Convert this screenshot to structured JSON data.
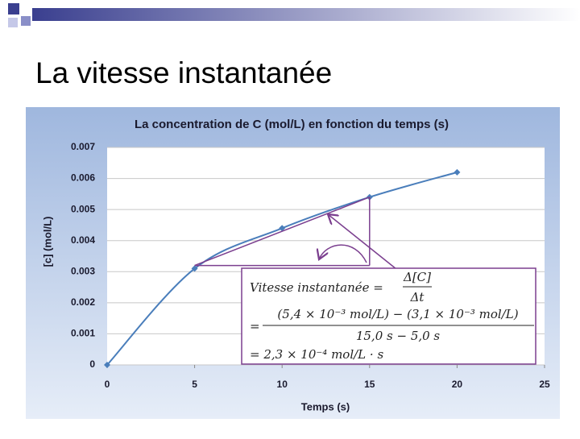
{
  "slide_title": "La vitesse instantanée",
  "chart_data": {
    "type": "line",
    "title": "La concentration de C (mol/L) en fonction du temps (s)",
    "x_label": "Temps (s)",
    "y_label": "[c] (mol/L)",
    "x": [
      0,
      5,
      10,
      15,
      20
    ],
    "series": [
      {
        "color": "#4a7ebb",
        "values": [
          0,
          0.0031,
          0.0044,
          0.0054,
          0.0062
        ]
      }
    ],
    "xlim": [
      0,
      25
    ],
    "xticks": [
      0,
      5,
      10,
      15,
      20,
      25
    ],
    "ylim": [
      0,
      0.007
    ],
    "yticks": [
      0,
      0.001,
      0.002,
      0.003,
      0.004,
      0.005,
      0.006,
      0.007
    ],
    "grid": true,
    "tangent": {
      "color": "#7b3f8f",
      "x": [
        5,
        15
      ],
      "values": [
        0.0032,
        0.0054
      ]
    },
    "annotation": {
      "line1": "Vitesse instantanée =",
      "num1": "Δ[C]",
      "den1": "Δt",
      "eq": "=",
      "num2": "(5,4 × 10⁻³ mol/L) − (3,1 × 10⁻³ mol/L)",
      "den2": "15,0 s − 5,0 s",
      "result": "= 2,3 × 10⁻⁴ mol/L · s"
    }
  }
}
